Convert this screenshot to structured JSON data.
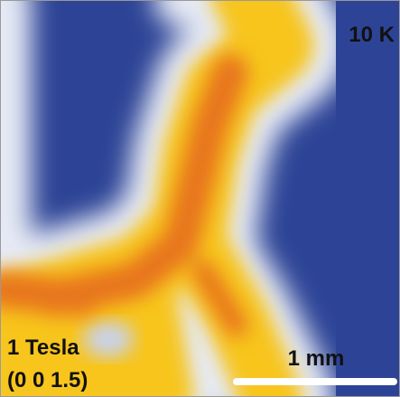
{
  "labels": {
    "temperature": "10 K",
    "field": "1 Tesla",
    "direction": "(0 0 1.5)",
    "scale_bar": "1 mm"
  }
}
